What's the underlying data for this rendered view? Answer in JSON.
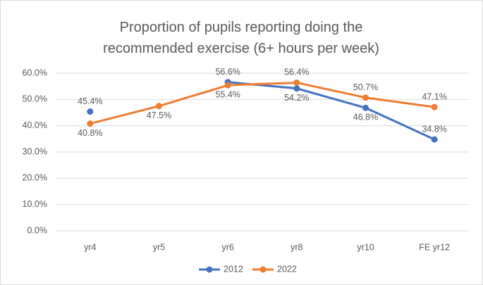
{
  "chart_data": {
    "type": "line",
    "title": "Proportion of pupils reporting doing the recommended exercise (6+ hours per week)",
    "categories": [
      "yr4",
      "yr5",
      "yr6",
      "yr8",
      "yr10",
      "FE yr12"
    ],
    "series": [
      {
        "name": "2012",
        "color": "#4472c4",
        "values": [
          45.4,
          null,
          56.6,
          54.2,
          46.8,
          34.8
        ],
        "value_labels": [
          "45.4%",
          null,
          "56.6%",
          "54.2%",
          "46.8%",
          "34.8%"
        ]
      },
      {
        "name": "2022",
        "color": "#ed7d31",
        "values": [
          40.8,
          47.5,
          55.4,
          56.4,
          50.7,
          47.1
        ],
        "value_labels": [
          "40.8%",
          "47.5%",
          "55.4%",
          "56.4%",
          "50.7%",
          "47.1%"
        ]
      }
    ],
    "ylim": [
      0,
      60
    ],
    "yticks": [
      {
        "value": 0,
        "label": "0.0%"
      },
      {
        "value": 10,
        "label": "10.0%"
      },
      {
        "value": 20,
        "label": "20.0%"
      },
      {
        "value": 30,
        "label": "30.0%"
      },
      {
        "value": 40,
        "label": "40.0%"
      },
      {
        "value": 50,
        "label": "50.0%"
      },
      {
        "value": 60,
        "label": "60.0%"
      }
    ],
    "grid": true,
    "legend": "bottom"
  }
}
